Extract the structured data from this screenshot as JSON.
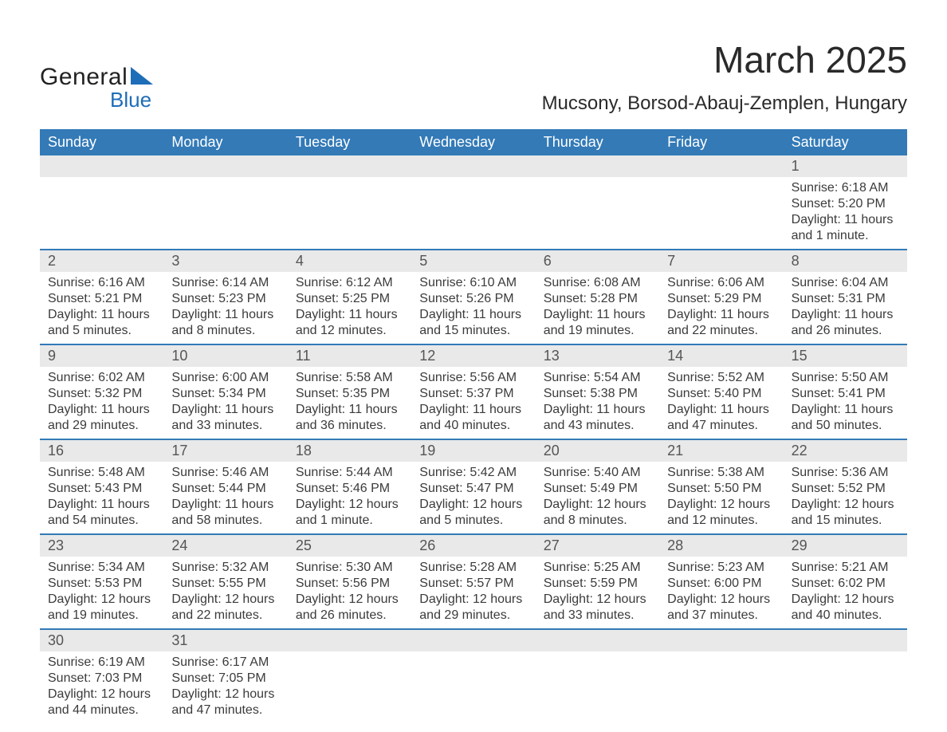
{
  "logo": {
    "line1": "General",
    "line2": "Blue",
    "triangle_color": "#1e6db8"
  },
  "title": {
    "month": "March 2025",
    "location": "Mucsony, Borsod-Abauj-Zemplen, Hungary"
  },
  "colors": {
    "header_bg": "#337ab7",
    "header_text": "#ffffff",
    "daynum_bg": "#e9e9e9",
    "body_text": "#3b3b3b",
    "border": "#337ab7",
    "page_bg": "#ffffff"
  },
  "fonts": {
    "title_size_pt": 34,
    "location_size_pt": 18,
    "header_size_pt": 14,
    "body_size_pt": 12
  },
  "days_of_week": [
    "Sunday",
    "Monday",
    "Tuesday",
    "Wednesday",
    "Thursday",
    "Friday",
    "Saturday"
  ],
  "weeks": [
    {
      "nums": [
        "",
        "",
        "",
        "",
        "",
        "",
        "1"
      ],
      "cells": [
        {},
        {},
        {},
        {},
        {},
        {},
        {
          "sunrise": "Sunrise: 6:18 AM",
          "sunset": "Sunset: 5:20 PM",
          "d1": "Daylight: 11 hours",
          "d2": "and 1 minute."
        }
      ]
    },
    {
      "nums": [
        "2",
        "3",
        "4",
        "5",
        "6",
        "7",
        "8"
      ],
      "cells": [
        {
          "sunrise": "Sunrise: 6:16 AM",
          "sunset": "Sunset: 5:21 PM",
          "d1": "Daylight: 11 hours",
          "d2": "and 5 minutes."
        },
        {
          "sunrise": "Sunrise: 6:14 AM",
          "sunset": "Sunset: 5:23 PM",
          "d1": "Daylight: 11 hours",
          "d2": "and 8 minutes."
        },
        {
          "sunrise": "Sunrise: 6:12 AM",
          "sunset": "Sunset: 5:25 PM",
          "d1": "Daylight: 11 hours",
          "d2": "and 12 minutes."
        },
        {
          "sunrise": "Sunrise: 6:10 AM",
          "sunset": "Sunset: 5:26 PM",
          "d1": "Daylight: 11 hours",
          "d2": "and 15 minutes."
        },
        {
          "sunrise": "Sunrise: 6:08 AM",
          "sunset": "Sunset: 5:28 PM",
          "d1": "Daylight: 11 hours",
          "d2": "and 19 minutes."
        },
        {
          "sunrise": "Sunrise: 6:06 AM",
          "sunset": "Sunset: 5:29 PM",
          "d1": "Daylight: 11 hours",
          "d2": "and 22 minutes."
        },
        {
          "sunrise": "Sunrise: 6:04 AM",
          "sunset": "Sunset: 5:31 PM",
          "d1": "Daylight: 11 hours",
          "d2": "and 26 minutes."
        }
      ]
    },
    {
      "nums": [
        "9",
        "10",
        "11",
        "12",
        "13",
        "14",
        "15"
      ],
      "cells": [
        {
          "sunrise": "Sunrise: 6:02 AM",
          "sunset": "Sunset: 5:32 PM",
          "d1": "Daylight: 11 hours",
          "d2": "and 29 minutes."
        },
        {
          "sunrise": "Sunrise: 6:00 AM",
          "sunset": "Sunset: 5:34 PM",
          "d1": "Daylight: 11 hours",
          "d2": "and 33 minutes."
        },
        {
          "sunrise": "Sunrise: 5:58 AM",
          "sunset": "Sunset: 5:35 PM",
          "d1": "Daylight: 11 hours",
          "d2": "and 36 minutes."
        },
        {
          "sunrise": "Sunrise: 5:56 AM",
          "sunset": "Sunset: 5:37 PM",
          "d1": "Daylight: 11 hours",
          "d2": "and 40 minutes."
        },
        {
          "sunrise": "Sunrise: 5:54 AM",
          "sunset": "Sunset: 5:38 PM",
          "d1": "Daylight: 11 hours",
          "d2": "and 43 minutes."
        },
        {
          "sunrise": "Sunrise: 5:52 AM",
          "sunset": "Sunset: 5:40 PM",
          "d1": "Daylight: 11 hours",
          "d2": "and 47 minutes."
        },
        {
          "sunrise": "Sunrise: 5:50 AM",
          "sunset": "Sunset: 5:41 PM",
          "d1": "Daylight: 11 hours",
          "d2": "and 50 minutes."
        }
      ]
    },
    {
      "nums": [
        "16",
        "17",
        "18",
        "19",
        "20",
        "21",
        "22"
      ],
      "cells": [
        {
          "sunrise": "Sunrise: 5:48 AM",
          "sunset": "Sunset: 5:43 PM",
          "d1": "Daylight: 11 hours",
          "d2": "and 54 minutes."
        },
        {
          "sunrise": "Sunrise: 5:46 AM",
          "sunset": "Sunset: 5:44 PM",
          "d1": "Daylight: 11 hours",
          "d2": "and 58 minutes."
        },
        {
          "sunrise": "Sunrise: 5:44 AM",
          "sunset": "Sunset: 5:46 PM",
          "d1": "Daylight: 12 hours",
          "d2": "and 1 minute."
        },
        {
          "sunrise": "Sunrise: 5:42 AM",
          "sunset": "Sunset: 5:47 PM",
          "d1": "Daylight: 12 hours",
          "d2": "and 5 minutes."
        },
        {
          "sunrise": "Sunrise: 5:40 AM",
          "sunset": "Sunset: 5:49 PM",
          "d1": "Daylight: 12 hours",
          "d2": "and 8 minutes."
        },
        {
          "sunrise": "Sunrise: 5:38 AM",
          "sunset": "Sunset: 5:50 PM",
          "d1": "Daylight: 12 hours",
          "d2": "and 12 minutes."
        },
        {
          "sunrise": "Sunrise: 5:36 AM",
          "sunset": "Sunset: 5:52 PM",
          "d1": "Daylight: 12 hours",
          "d2": "and 15 minutes."
        }
      ]
    },
    {
      "nums": [
        "23",
        "24",
        "25",
        "26",
        "27",
        "28",
        "29"
      ],
      "cells": [
        {
          "sunrise": "Sunrise: 5:34 AM",
          "sunset": "Sunset: 5:53 PM",
          "d1": "Daylight: 12 hours",
          "d2": "and 19 minutes."
        },
        {
          "sunrise": "Sunrise: 5:32 AM",
          "sunset": "Sunset: 5:55 PM",
          "d1": "Daylight: 12 hours",
          "d2": "and 22 minutes."
        },
        {
          "sunrise": "Sunrise: 5:30 AM",
          "sunset": "Sunset: 5:56 PM",
          "d1": "Daylight: 12 hours",
          "d2": "and 26 minutes."
        },
        {
          "sunrise": "Sunrise: 5:28 AM",
          "sunset": "Sunset: 5:57 PM",
          "d1": "Daylight: 12 hours",
          "d2": "and 29 minutes."
        },
        {
          "sunrise": "Sunrise: 5:25 AM",
          "sunset": "Sunset: 5:59 PM",
          "d1": "Daylight: 12 hours",
          "d2": "and 33 minutes."
        },
        {
          "sunrise": "Sunrise: 5:23 AM",
          "sunset": "Sunset: 6:00 PM",
          "d1": "Daylight: 12 hours",
          "d2": "and 37 minutes."
        },
        {
          "sunrise": "Sunrise: 5:21 AM",
          "sunset": "Sunset: 6:02 PM",
          "d1": "Daylight: 12 hours",
          "d2": "and 40 minutes."
        }
      ]
    },
    {
      "nums": [
        "30",
        "31",
        "",
        "",
        "",
        "",
        ""
      ],
      "cells": [
        {
          "sunrise": "Sunrise: 6:19 AM",
          "sunset": "Sunset: 7:03 PM",
          "d1": "Daylight: 12 hours",
          "d2": "and 44 minutes."
        },
        {
          "sunrise": "Sunrise: 6:17 AM",
          "sunset": "Sunset: 7:05 PM",
          "d1": "Daylight: 12 hours",
          "d2": "and 47 minutes."
        },
        {},
        {},
        {},
        {},
        {}
      ]
    }
  ]
}
